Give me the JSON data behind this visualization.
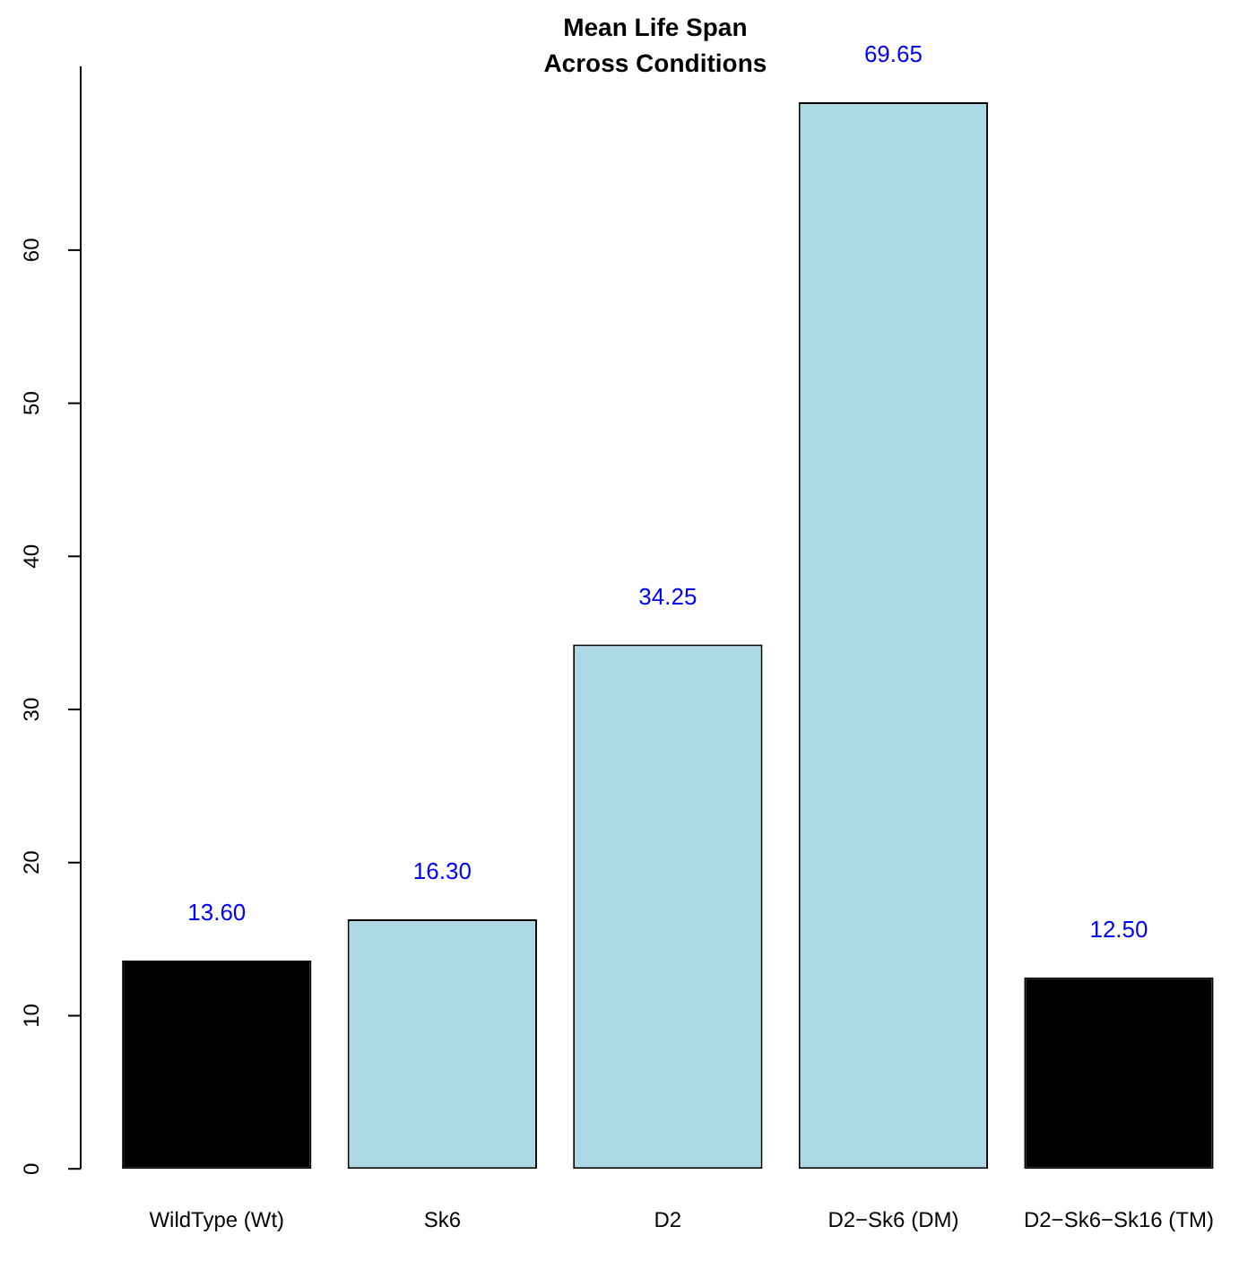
{
  "chart_data": {
    "type": "bar",
    "title": "Mean Life Span\nAcross Conditions",
    "categories": [
      "WildType (Wt)",
      "Sk6",
      "D2",
      "D2−Sk6 (DM)",
      "D2−Sk6−Sk16 (TM)"
    ],
    "values": [
      13.6,
      16.3,
      34.25,
      69.65,
      12.5
    ],
    "colors": [
      "#000000",
      "#add8e6",
      "#add8e6",
      "#add8e6",
      "#000000"
    ],
    "value_labels": [
      "13.60",
      "16.30",
      "34.25",
      "69.65",
      "12.50"
    ],
    "ylim": [
      0,
      72
    ],
    "yticks": [
      0,
      10,
      20,
      30,
      40,
      50,
      60
    ],
    "grid": false,
    "legend": false
  }
}
